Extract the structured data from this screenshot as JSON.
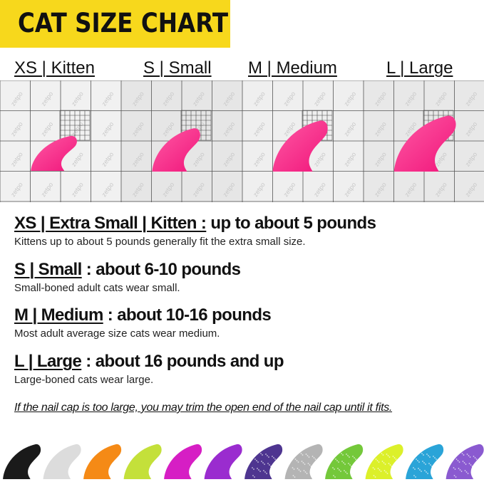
{
  "title": "CAT SIZE CHART",
  "sizes": [
    {
      "label": "XS | Kitten",
      "color": "#f0157a"
    },
    {
      "label": "S | Small",
      "color": "#f0157a"
    },
    {
      "label": "M | Medium",
      "color": "#f0157a"
    },
    {
      "label": "L | Large",
      "color": "#f0157a"
    }
  ],
  "watermark": "zetpo",
  "details": [
    {
      "heading": "XS | Extra Small | Kitten :",
      "range": " up to about 5 pounds",
      "description": "Kittens up to about 5 pounds generally fit the extra small size."
    },
    {
      "heading": "S | Small",
      "range": " : about 6-10 pounds",
      "description": "Small-boned adult cats wear small."
    },
    {
      "heading": "M | Medium",
      "range": " : about 10-16 pounds",
      "description": "Most adult average size cats wear medium."
    },
    {
      "heading": "L | Large",
      "range": " : about 16 pounds and up",
      "description": "Large-boned cats wear large."
    }
  ],
  "note": "If the nail cap is too large, you may trim the open end of the nail cap until it fits.",
  "colors": [
    {
      "name": "black",
      "hex": "#1a1a1a",
      "glitter": false
    },
    {
      "name": "white",
      "hex": "#dcdcdc",
      "glitter": false
    },
    {
      "name": "orange",
      "hex": "#f58a16",
      "glitter": false
    },
    {
      "name": "lime",
      "hex": "#c4e03a",
      "glitter": false
    },
    {
      "name": "magenta",
      "hex": "#d61ec4",
      "glitter": false
    },
    {
      "name": "purple",
      "hex": "#9a2ccf",
      "glitter": false
    },
    {
      "name": "glitter-purple",
      "hex": "#4e3590",
      "glitter": true
    },
    {
      "name": "glitter-silver",
      "hex": "#b4b4b4",
      "glitter": true
    },
    {
      "name": "glitter-green",
      "hex": "#74c83a",
      "glitter": true
    },
    {
      "name": "glitter-yellow",
      "hex": "#dcf02a",
      "glitter": true
    },
    {
      "name": "glitter-blue",
      "hex": "#2aa4d8",
      "glitter": true
    },
    {
      "name": "glitter-lavender",
      "hex": "#8a5ad0",
      "glitter": true
    }
  ]
}
